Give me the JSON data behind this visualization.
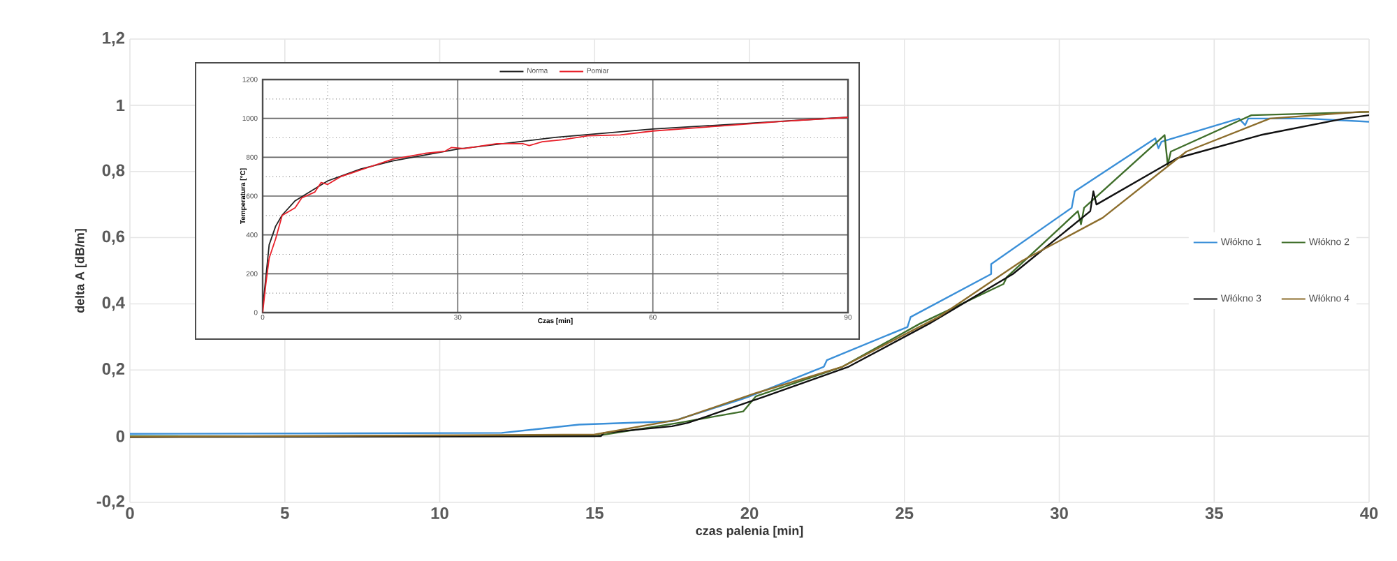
{
  "chart_data": [
    {
      "type": "line",
      "xlabel": "czas palenia [min]",
      "ylabel": "delta A [dB/m]",
      "xlim": [
        0,
        40
      ],
      "ylim": [
        -0.2,
        1.2
      ],
      "xticks": [
        0,
        5,
        10,
        15,
        20,
        25,
        30,
        35,
        40
      ],
      "yticks": [
        {
          "value": -0.2,
          "label": "-0,2"
        },
        0,
        {
          "value": 0.2,
          "label": "0,2"
        },
        {
          "value": 0.4,
          "label": "0,4"
        },
        {
          "value": 0.6,
          "label": "0,6"
        },
        {
          "value": 0.8,
          "label": "0,8"
        },
        1,
        {
          "value": 1.2,
          "label": "1,2"
        }
      ],
      "grid": true,
      "legend": "right",
      "series": [
        {
          "name": "Włókno 1",
          "color": "#3a8fd8",
          "x": [
            0,
            12,
            14.5,
            17.5,
            19.7,
            20,
            22.4,
            22.5,
            25.1,
            25.2,
            27.8,
            27.8,
            30.4,
            30.5,
            33.1,
            33.2,
            33.3,
            35.8,
            36.0,
            36.1,
            38,
            40
          ],
          "values": [
            0.007,
            0.01,
            0.035,
            0.045,
            0.11,
            0.12,
            0.21,
            0.23,
            0.33,
            0.36,
            0.49,
            0.52,
            0.69,
            0.74,
            0.9,
            0.87,
            0.89,
            0.96,
            0.94,
            0.96,
            0.96,
            0.95
          ]
        },
        {
          "name": "Włókno 2",
          "color": "#3f6e2a",
          "x": [
            0,
            15,
            17.7,
            19.8,
            20.2,
            23,
            25.5,
            28.2,
            28.3,
            30.6,
            30.7,
            30.8,
            33.4,
            33.5,
            33.6,
            36.2,
            40
          ],
          "values": [
            0,
            0,
            0.04,
            0.075,
            0.12,
            0.21,
            0.34,
            0.46,
            0.48,
            0.68,
            0.64,
            0.69,
            0.91,
            0.82,
            0.86,
            0.97,
            0.98
          ]
        },
        {
          "name": "Włókno 3",
          "color": "#111111",
          "x": [
            0,
            15.2,
            15.3,
            17.5,
            18,
            20.5,
            23.2,
            25.8,
            28.5,
            31.0,
            31.1,
            31.2,
            33.8,
            36.5,
            39.2,
            40
          ],
          "values": [
            -0.003,
            0,
            0.01,
            0.03,
            0.04,
            0.12,
            0.21,
            0.34,
            0.49,
            0.68,
            0.74,
            0.7,
            0.84,
            0.91,
            0.96,
            0.97
          ]
        },
        {
          "name": "Włókno 4",
          "color": "#8c6d2c",
          "x": [
            0,
            15,
            17.7,
            20.2,
            23,
            26.1,
            28.8,
            31.4,
            34.1,
            36.8,
            39.7,
            40
          ],
          "values": [
            -0.002,
            0.005,
            0.05,
            0.13,
            0.21,
            0.36,
            0.53,
            0.66,
            0.86,
            0.96,
            0.98,
            0.98
          ]
        }
      ]
    },
    {
      "type": "line",
      "xlabel": "Czas [min]",
      "ylabel": "Temperatura [°C]",
      "xlim": [
        0,
        90
      ],
      "ylim": [
        0,
        1200
      ],
      "xticks": [
        0,
        {
          "value": 10,
          "label": null
        },
        {
          "value": 20,
          "label": null
        },
        30,
        {
          "value": 40,
          "label": null
        },
        {
          "value": 50,
          "label": null
        },
        60,
        {
          "value": 70,
          "label": null
        },
        {
          "value": 80,
          "label": null
        },
        90
      ],
      "yticks": [
        0,
        {
          "value": 100,
          "label": null
        },
        200,
        {
          "value": 300,
          "label": null
        },
        400,
        {
          "value": 500,
          "label": null
        },
        600,
        {
          "value": 700,
          "label": null
        },
        800,
        {
          "value": 900,
          "label": null
        },
        1000,
        {
          "value": 1100,
          "label": null
        },
        1200
      ],
      "grid": true,
      "legend": "top",
      "series": [
        {
          "name": "Norma",
          "color": "#222222",
          "x": [
            0,
            1,
            2,
            3,
            5,
            10,
            15,
            20,
            30,
            45,
            60,
            90
          ],
          "values": [
            20,
            349,
            445,
            502,
            576,
            678,
            739,
            781,
            842,
            902,
            945,
            1006
          ]
        },
        {
          "name": "Pomiar",
          "color": "#e8202a",
          "x": [
            0,
            0.5,
            1,
            2,
            3,
            4,
            5,
            6,
            8,
            9,
            10,
            12,
            20,
            25,
            28,
            29,
            31,
            36,
            40,
            41,
            43,
            46,
            50,
            55,
            60,
            70,
            80,
            90
          ],
          "values": [
            0,
            150,
            280,
            380,
            500,
            520,
            540,
            590,
            620,
            670,
            660,
            700,
            790,
            820,
            830,
            850,
            845,
            870,
            870,
            860,
            880,
            890,
            910,
            915,
            935,
            960,
            985,
            1005
          ]
        }
      ]
    }
  ]
}
